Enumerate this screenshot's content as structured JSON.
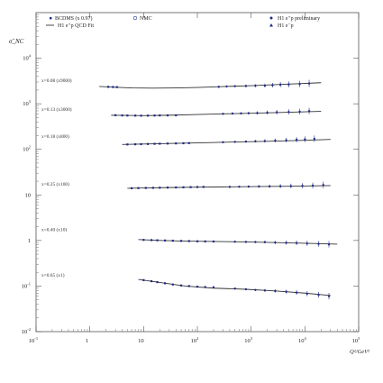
{
  "chart_data": {
    "type": "scatter",
    "title": "",
    "ylabel": "σ̃_NC",
    "xlabel": "Q²/GeV²",
    "x_log": true,
    "y_log": true,
    "xlim": [
      0.1,
      100000
    ],
    "ylim": [
      0.01,
      100000
    ],
    "x_ticks": [
      {
        "v": 0.1,
        "base": "10",
        "exp": "-1"
      },
      {
        "v": 1,
        "base": "1",
        "exp": ""
      },
      {
        "v": 10,
        "base": "10",
        "exp": ""
      },
      {
        "v": 100,
        "base": "10",
        "exp": "2"
      },
      {
        "v": 1000,
        "base": "10",
        "exp": "3"
      },
      {
        "v": 10000,
        "base": "10",
        "exp": "4"
      },
      {
        "v": 100000,
        "base": "10",
        "exp": "5"
      }
    ],
    "y_ticks": [
      {
        "v": 0.01,
        "base": "10",
        "exp": "-2"
      },
      {
        "v": 0.1,
        "base": "10",
        "exp": "-1"
      },
      {
        "v": 1,
        "base": "1",
        "exp": ""
      },
      {
        "v": 10,
        "base": "10",
        "exp": ""
      },
      {
        "v": 100,
        "base": "10",
        "exp": "2"
      },
      {
        "v": 1000,
        "base": "10",
        "exp": "3"
      },
      {
        "v": 10000,
        "base": "10",
        "exp": "4"
      }
    ],
    "legend": [
      {
        "label": "BCDMS (x 0.97) ",
        "label2": "NMC",
        "marker": "square",
        "color": "#1e2a88",
        "marker2": "open-circle"
      },
      {
        "label": "H1 e⁺p QCD Fit",
        "marker": "line",
        "color": "#333333"
      },
      {
        "label": "H1  e⁺p preliminary",
        "marker": "circle",
        "color": "#1e2a88"
      },
      {
        "label": "H1  e⁻p",
        "marker": "triangle",
        "color": "#1e2a88"
      }
    ],
    "bins": [
      {
        "label": "x=0.08 (x9000)",
        "y_label": 3000,
        "fit": [
          [
            1.5,
            2400
          ],
          [
            3,
            2300
          ],
          [
            6,
            2230
          ],
          [
            15,
            2200
          ],
          [
            40,
            2230
          ],
          [
            100,
            2280
          ],
          [
            300,
            2380
          ],
          [
            1000,
            2500
          ],
          [
            5000,
            2700
          ],
          [
            20000,
            2900
          ]
        ],
        "data_low": [
          [
            2.2,
            2350
          ],
          [
            2.7,
            2330
          ],
          [
            3.2,
            2320
          ]
        ],
        "data_high": [
          [
            250,
            2350
          ],
          [
            350,
            2400
          ],
          [
            500,
            2430
          ],
          [
            800,
            2450
          ],
          [
            1200,
            2480
          ],
          [
            1800,
            2500
          ],
          [
            2500,
            2550
          ],
          [
            3500,
            2620
          ],
          [
            5000,
            2650
          ],
          [
            8000,
            2700
          ],
          [
            12000,
            2780
          ]
        ]
      },
      {
        "label": "x=0.13 (x3000)",
        "y_label": 700,
        "fit": [
          [
            2.5,
            560
          ],
          [
            5,
            555
          ],
          [
            10,
            550
          ],
          [
            30,
            560
          ],
          [
            100,
            580
          ],
          [
            300,
            600
          ],
          [
            1000,
            620
          ],
          [
            5000,
            650
          ],
          [
            20000,
            680
          ]
        ],
        "data_low": [
          [
            3,
            560
          ],
          [
            4,
            555
          ],
          [
            5,
            552
          ],
          [
            7,
            550
          ],
          [
            9,
            548
          ],
          [
            12,
            550
          ],
          [
            16,
            552
          ],
          [
            20,
            555
          ],
          [
            28,
            556
          ],
          [
            40,
            558
          ]
        ],
        "data_high": [
          [
            300,
            600
          ],
          [
            450,
            610
          ],
          [
            650,
            615
          ],
          [
            900,
            620
          ],
          [
            1300,
            625
          ],
          [
            2000,
            640
          ],
          [
            3000,
            650
          ],
          [
            5000,
            660
          ],
          [
            8000,
            670
          ],
          [
            12000,
            690
          ]
        ]
      },
      {
        "label": "x=0.18 (x800)",
        "y_label": 180,
        "fit": [
          [
            4,
            128
          ],
          [
            8,
            130
          ],
          [
            20,
            133
          ],
          [
            50,
            136
          ],
          [
            150,
            140
          ],
          [
            500,
            145
          ],
          [
            2000,
            150
          ],
          [
            10000,
            158
          ],
          [
            30000,
            165
          ]
        ],
        "data_low": [
          [
            5,
            128
          ],
          [
            7,
            129
          ],
          [
            9,
            130
          ],
          [
            12,
            131
          ],
          [
            16,
            132
          ],
          [
            20,
            133
          ],
          [
            28,
            134
          ],
          [
            40,
            135
          ],
          [
            55,
            136
          ],
          [
            70,
            137
          ]
        ],
        "data_high": [
          [
            300,
            143
          ],
          [
            500,
            146
          ],
          [
            800,
            148
          ],
          [
            1200,
            150
          ],
          [
            1800,
            152
          ],
          [
            2800,
            155
          ],
          [
            4500,
            158
          ],
          [
            7000,
            162
          ],
          [
            10000,
            165
          ],
          [
            15000,
            170
          ]
        ]
      },
      {
        "label": "x=0.25 (x100)",
        "y_label": 16,
        "fit": [
          [
            5,
            14
          ],
          [
            10,
            14.2
          ],
          [
            30,
            14.5
          ],
          [
            100,
            14.8
          ],
          [
            300,
            15
          ],
          [
            1000,
            15.2
          ],
          [
            5000,
            15.5
          ],
          [
            30000,
            16
          ]
        ],
        "data_low": [
          [
            6,
            14
          ],
          [
            8,
            14.1
          ],
          [
            11,
            14.2
          ],
          [
            15,
            14.3
          ],
          [
            20,
            14.4
          ],
          [
            28,
            14.5
          ],
          [
            40,
            14.6
          ],
          [
            55,
            14.7
          ],
          [
            75,
            14.8
          ],
          [
            100,
            14.9
          ],
          [
            130,
            15
          ]
        ],
        "data_high": [
          [
            400,
            15
          ],
          [
            600,
            15.1
          ],
          [
            900,
            15.2
          ],
          [
            1400,
            15.3
          ],
          [
            2200,
            15.4
          ],
          [
            3500,
            15.5
          ],
          [
            5500,
            15.6
          ],
          [
            9000,
            15.8
          ],
          [
            14000,
            16
          ],
          [
            22000,
            16.5
          ]
        ]
      },
      {
        "label": "x=0.40 (x10)",
        "y_label": 1.6,
        "fit": [
          [
            8,
            1.05
          ],
          [
            20,
            1.0
          ],
          [
            60,
            0.97
          ],
          [
            200,
            0.95
          ],
          [
            800,
            0.93
          ],
          [
            3000,
            0.9
          ],
          [
            15000,
            0.86
          ],
          [
            40000,
            0.83
          ]
        ],
        "data_low": [
          [
            10,
            1.03
          ],
          [
            14,
            1.02
          ],
          [
            18,
            1.01
          ],
          [
            25,
            1.0
          ],
          [
            35,
            0.99
          ],
          [
            50,
            0.98
          ],
          [
            70,
            0.97
          ],
          [
            100,
            0.96
          ],
          [
            140,
            0.955
          ],
          [
            200,
            0.95
          ]
        ],
        "data_high": [
          [
            500,
            0.94
          ],
          [
            800,
            0.93
          ],
          [
            1200,
            0.925
          ],
          [
            1800,
            0.92
          ],
          [
            2800,
            0.9
          ],
          [
            4500,
            0.89
          ],
          [
            7000,
            0.88
          ],
          [
            11000,
            0.86
          ],
          [
            18000,
            0.84
          ],
          [
            28000,
            0.82
          ]
        ]
      },
      {
        "label": "x=0.65 (x1)",
        "y_label": 0.16,
        "fit": [
          [
            8,
            0.14
          ],
          [
            20,
            0.12
          ],
          [
            60,
            0.1
          ],
          [
            200,
            0.09
          ],
          [
            800,
            0.085
          ],
          [
            3000,
            0.078
          ],
          [
            10000,
            0.07
          ],
          [
            30000,
            0.062
          ]
        ],
        "data_low": [
          [
            10,
            0.135
          ],
          [
            14,
            0.128
          ],
          [
            18,
            0.122
          ],
          [
            25,
            0.115
          ],
          [
            35,
            0.108
          ],
          [
            50,
            0.103
          ],
          [
            70,
            0.1
          ],
          [
            100,
            0.097
          ],
          [
            140,
            0.095
          ],
          [
            200,
            0.094
          ]
        ],
        "data_high": [
          [
            500,
            0.088
          ],
          [
            800,
            0.085
          ],
          [
            1200,
            0.082
          ],
          [
            1800,
            0.08
          ],
          [
            2800,
            0.078
          ],
          [
            4500,
            0.075
          ],
          [
            7000,
            0.072
          ],
          [
            11000,
            0.068
          ],
          [
            18000,
            0.064
          ],
          [
            28000,
            0.06
          ]
        ]
      }
    ]
  }
}
